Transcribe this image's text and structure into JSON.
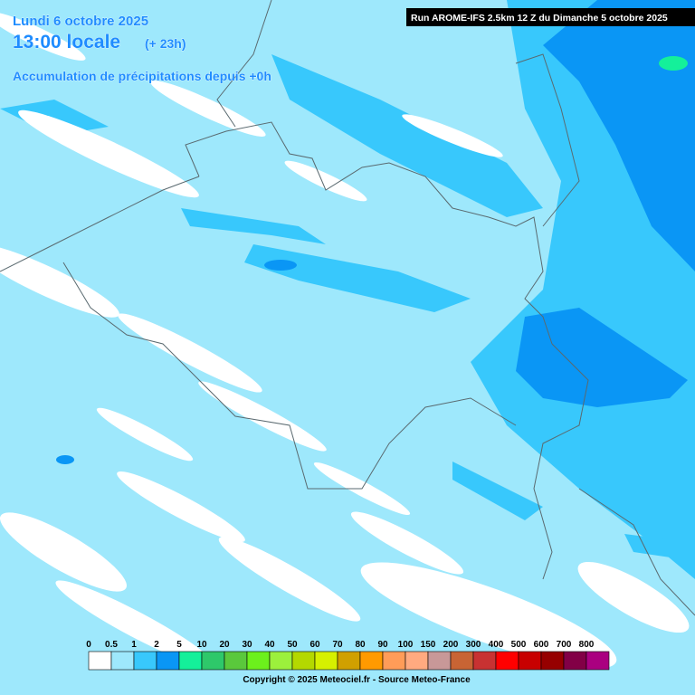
{
  "header": {
    "date": "Lundi 6 octobre 2025",
    "time": "13:00 locale",
    "offset": "(+ 23h)",
    "product": "Accumulation de précipitations depuis +0h",
    "run": "Run AROME-IFS 2.5km 12 Z du Dimanche 5 octobre 2025"
  },
  "legend": [
    {
      "label": "0",
      "color": "#ffffff"
    },
    {
      "label": "0.5",
      "color": "#9ee8fc"
    },
    {
      "label": "1",
      "color": "#38c8fc"
    },
    {
      "label": "2",
      "color": "#0a96f5"
    },
    {
      "label": "5",
      "color": "#14f09a"
    },
    {
      "label": "10",
      "color": "#2ec86a"
    },
    {
      "label": "20",
      "color": "#5ac83c"
    },
    {
      "label": "30",
      "color": "#6cf01c"
    },
    {
      "label": "40",
      "color": "#9cf03c"
    },
    {
      "label": "50",
      "color": "#b4d800"
    },
    {
      "label": "60",
      "color": "#d6f000"
    },
    {
      "label": "70",
      "color": "#d0a000"
    },
    {
      "label": "80",
      "color": "#ff9a00"
    },
    {
      "label": "90",
      "color": "#ff9c58"
    },
    {
      "label": "100",
      "color": "#ffaa80"
    },
    {
      "label": "150",
      "color": "#c89898"
    },
    {
      "label": "200",
      "color": "#c86434"
    },
    {
      "label": "300",
      "color": "#c83232"
    },
    {
      "label": "400",
      "color": "#ff0000"
    },
    {
      "label": "500",
      "color": "#c80000"
    },
    {
      "label": "600",
      "color": "#960000"
    },
    {
      "label": "700",
      "color": "#820046"
    },
    {
      "label": "800",
      "color": "#aa0080"
    }
  ],
  "footer": {
    "copyright": "Copyright © 2025 Meteociel.fr - Source Meteo-France"
  }
}
